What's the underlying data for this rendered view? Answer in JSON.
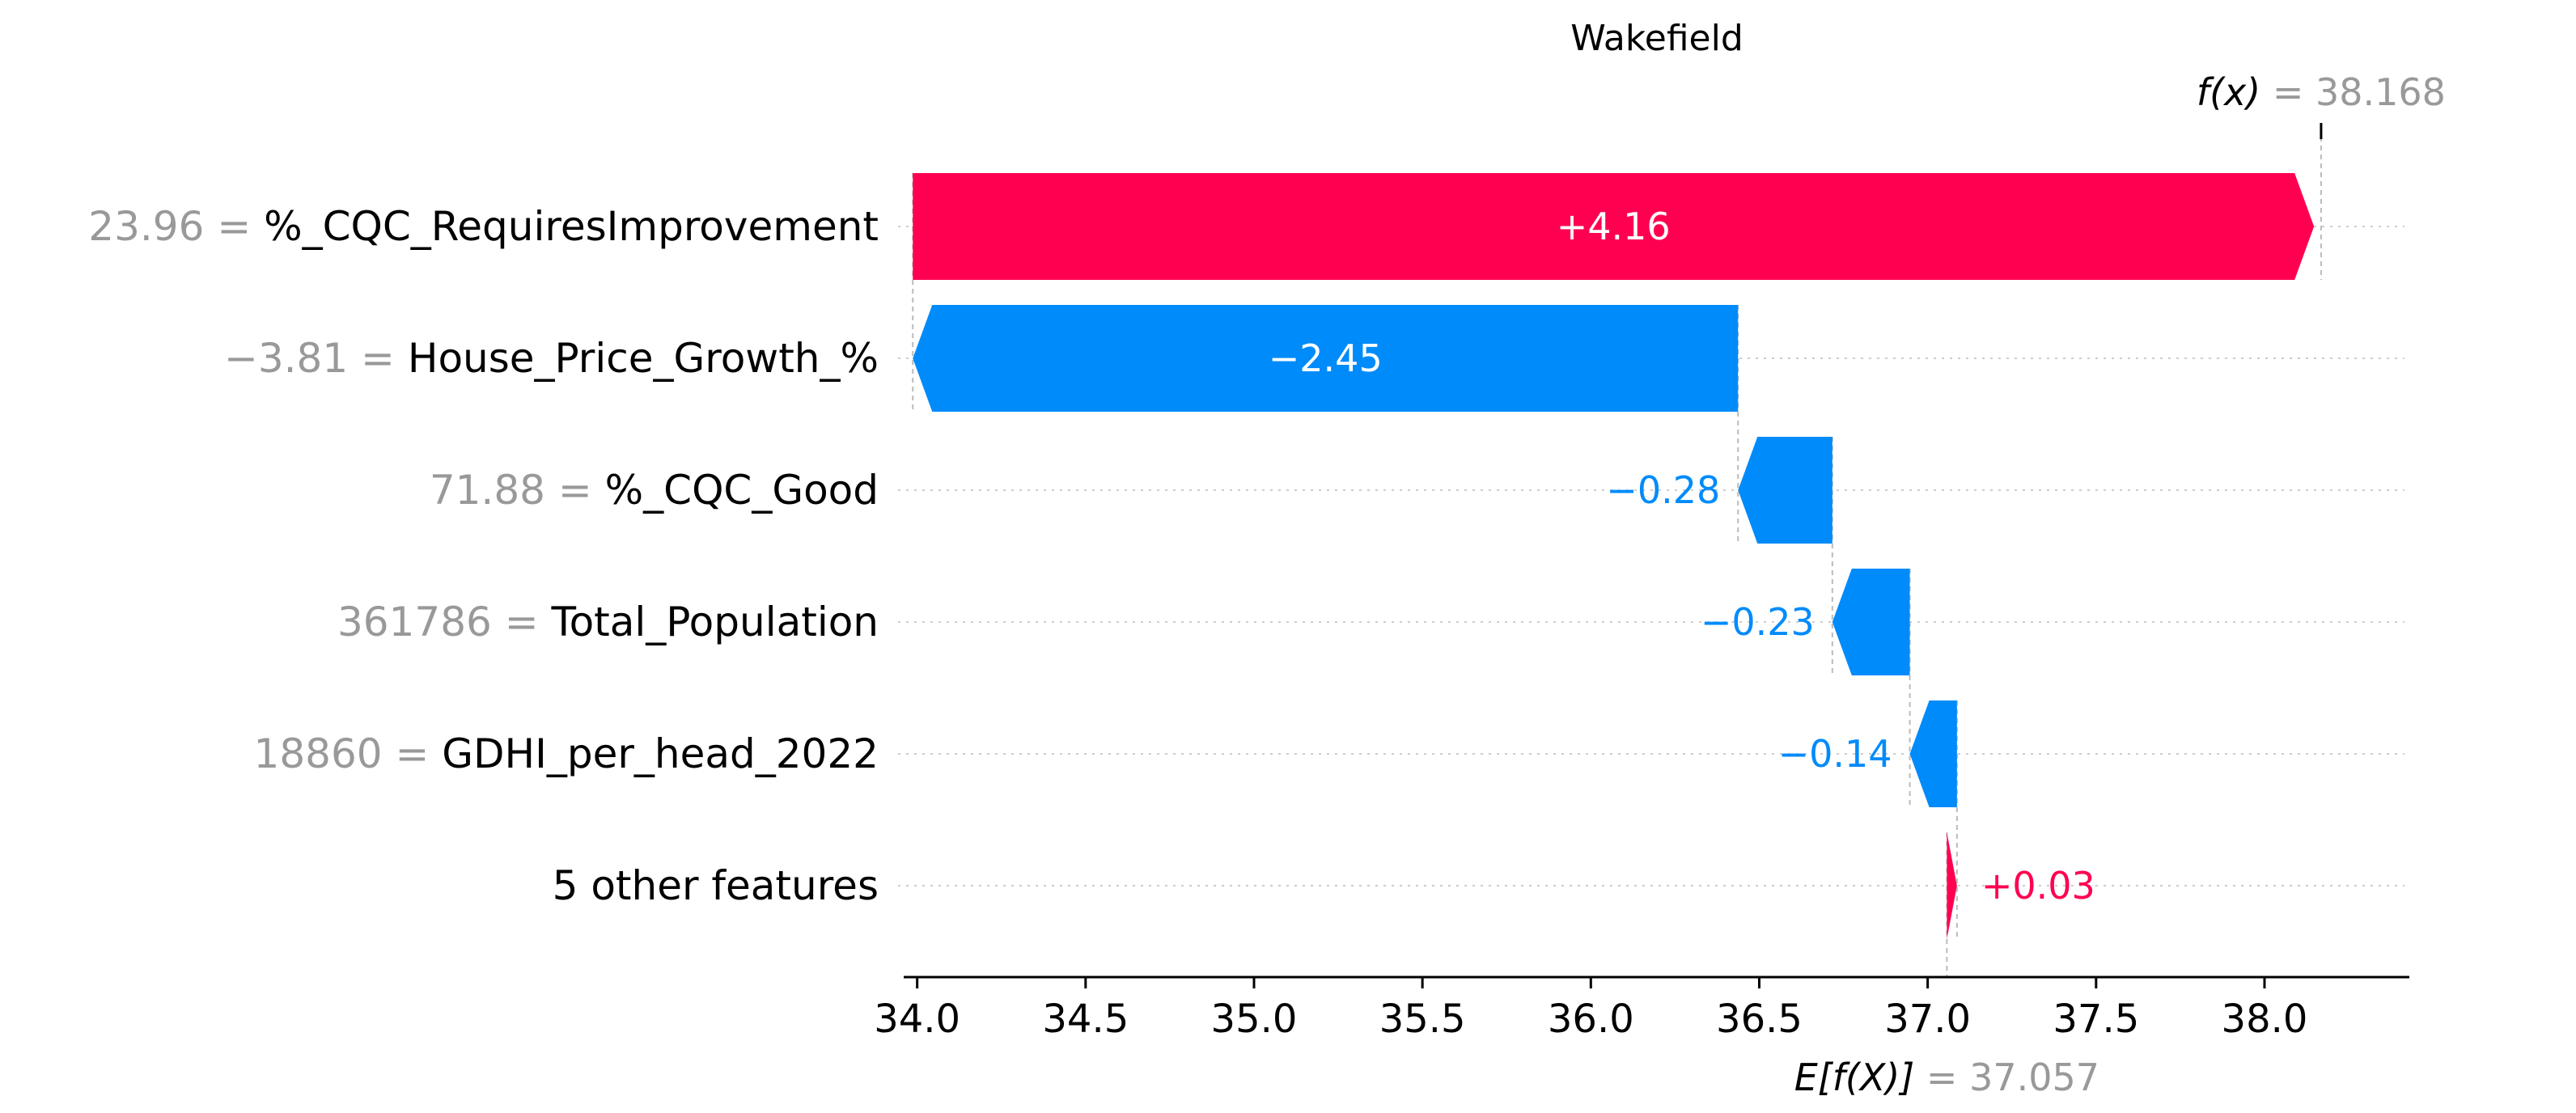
{
  "chart_data": {
    "type": "waterfall",
    "title": "Wakefield",
    "xlim": [
      33.96,
      38.43
    ],
    "xticks": [
      34.0,
      34.5,
      35.0,
      35.5,
      36.0,
      36.5,
      37.0,
      37.5,
      38.0
    ],
    "xtick_labels": [
      "34.0",
      "34.5",
      "35.0",
      "35.5",
      "36.0",
      "36.5",
      "37.0",
      "37.5",
      "38.0"
    ],
    "base_value": 37.057,
    "base_label": "E[f(X)]",
    "base_value_label": "= 37.057",
    "output_value": 38.168,
    "output_label": "f(x)",
    "output_value_label": "= 38.168",
    "features": [
      {
        "value": "23.96 =",
        "name": "%_CQC_RequiresImprovement",
        "contribution": 4.16,
        "label": "+4.16"
      },
      {
        "value": "−3.81 =",
        "name": "House_Price_Growth_%",
        "contribution": -2.45,
        "label": "−2.45"
      },
      {
        "value": "71.88 =",
        "name": "%_CQC_Good",
        "contribution": -0.28,
        "label": "−0.28"
      },
      {
        "value": "361786 =",
        "name": "Total_Population",
        "contribution": -0.23,
        "label": "−0.23"
      },
      {
        "value": "18860 =",
        "name": "GDHI_per_head_2022",
        "contribution": -0.14,
        "label": "−0.14"
      },
      {
        "value": "",
        "name": "5 other features",
        "contribution": 0.03,
        "label": "+0.03"
      }
    ],
    "colors": {
      "positive": "#ff0051",
      "negative": "#008bfb",
      "value_text": "#999999",
      "text": "#000000",
      "guide": "#bbbbbb",
      "grid": "#cccccc"
    }
  }
}
